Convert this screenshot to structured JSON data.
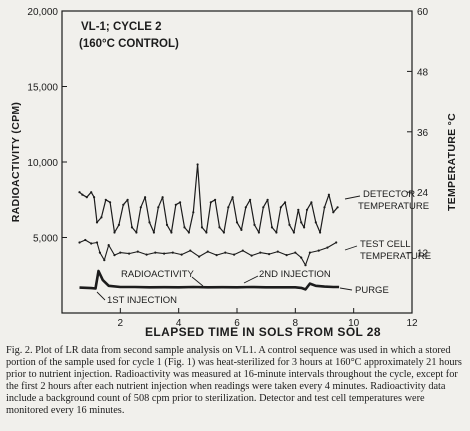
{
  "chart_data": {
    "type": "line",
    "title_lines": [
      "VL-1; CYCLE 2",
      "(160°C CONTROL)"
    ],
    "xlabel": "ELAPSED TIME IN SOLS FROM SOL 28",
    "ylabel": "RADIOACTIVITY (CPM)",
    "y2label": "TEMPERATURE °C",
    "xlim": [
      0,
      12
    ],
    "ylim": [
      0,
      20000
    ],
    "y2lim": [
      0,
      60
    ],
    "x_ticks": [
      2,
      4,
      6,
      8,
      10,
      12
    ],
    "y_ticks": [
      5000,
      10000,
      15000,
      20000
    ],
    "y_tick_labels": [
      "5,000",
      "10,000",
      "15,000",
      "20,000"
    ],
    "y2_ticks": [
      12,
      24,
      36,
      48,
      60
    ],
    "grid": false,
    "annotations": {
      "detector_temp": [
        "DETECTOR",
        "TEMPERATURE"
      ],
      "test_cell_temp": [
        "TEST CELL",
        "TEMPERATURE"
      ],
      "radioactivity": "RADIOACTIVITY",
      "injection_1": "1ST INJECTION",
      "injection_2": "2ND INJECTION",
      "purge": "PURGE"
    },
    "series": [
      {
        "name": "DETECTOR TEMPERATURE",
        "axis": "right",
        "x": [
          0.6,
          0.7,
          0.85,
          1.0,
          1.1,
          1.2,
          1.35,
          1.5,
          1.65,
          1.8,
          1.95,
          2.1,
          2.25,
          2.4,
          2.55,
          2.7,
          2.85,
          3.0,
          3.15,
          3.3,
          3.45,
          3.6,
          3.75,
          3.9,
          4.05,
          4.2,
          4.35,
          4.5,
          4.65,
          4.8,
          4.95,
          5.1,
          5.25,
          5.4,
          5.55,
          5.7,
          5.85,
          6.0,
          6.15,
          6.3,
          6.45,
          6.6,
          6.75,
          6.9,
          7.05,
          7.2,
          7.35,
          7.5,
          7.65,
          7.8,
          7.95,
          8.1,
          8.2,
          8.3,
          8.4,
          8.55,
          8.7,
          8.85,
          9.0,
          9.15,
          9.3,
          9.45
        ],
        "y": [
          24,
          23.5,
          23,
          24,
          23,
          18,
          19,
          22.5,
          22,
          16,
          17.5,
          21.5,
          22.5,
          17,
          16,
          21,
          23,
          18,
          16,
          21,
          23,
          17.5,
          16,
          21.5,
          22,
          17,
          16,
          20,
          29.5,
          17,
          16,
          22,
          22.5,
          17,
          16,
          21,
          23,
          18,
          16.5,
          21,
          22.5,
          17.5,
          16,
          21,
          22.5,
          17,
          16,
          21,
          22,
          17.5,
          16,
          20.5,
          18,
          17,
          20.5,
          22,
          18,
          16,
          21,
          23.5,
          20,
          21
        ]
      },
      {
        "name": "TEST CELL TEMPERATURE",
        "axis": "right",
        "x": [
          0.6,
          0.8,
          1.0,
          1.2,
          1.3,
          1.45,
          1.6,
          1.8,
          2.0,
          2.3,
          2.6,
          2.9,
          3.2,
          3.5,
          3.8,
          4.1,
          4.4,
          4.7,
          5.0,
          5.3,
          5.6,
          5.9,
          6.2,
          6.5,
          6.8,
          7.1,
          7.4,
          7.7,
          8.0,
          8.2,
          8.35,
          8.5,
          8.8,
          9.1,
          9.4
        ],
        "y": [
          14,
          14.5,
          13.8,
          14,
          12,
          10.5,
          13.5,
          11.5,
          12,
          11.8,
          12.2,
          11.6,
          12,
          11.8,
          12,
          11.6,
          12.4,
          11.2,
          12.2,
          11.5,
          12,
          11.6,
          12.4,
          11.4,
          12,
          11.7,
          12.2,
          11.5,
          12,
          11,
          9.5,
          12,
          12.4,
          13,
          14
        ]
      },
      {
        "name": "RADIOACTIVITY",
        "axis": "left",
        "x": [
          0.6,
          1.0,
          1.15,
          1.25,
          1.4,
          1.6,
          2.0,
          2.5,
          3.0,
          3.5,
          4.0,
          4.5,
          5.0,
          5.5,
          6.0,
          6.5,
          7.0,
          7.5,
          8.0,
          8.2,
          8.35,
          8.5,
          8.7,
          9.0,
          9.3,
          9.5
        ],
        "y": [
          1680,
          1650,
          1620,
          2780,
          2180,
          1800,
          1720,
          1720,
          1700,
          1710,
          1700,
          1720,
          1700,
          1710,
          1700,
          1720,
          1700,
          1700,
          1700,
          1660,
          1560,
          1950,
          1800,
          1750,
          1720,
          1720
        ]
      }
    ]
  },
  "caption": "Fig. 2. Plot of LR data from second sample analysis on VL1. A control sequence was used in which a stored portion of the sample used for cycle 1 (Fig. 1) was heat-sterilized for 3 hours at 160°C approximately 21 hours prior to nutrient injection. Radioactivity was measured at 16-minute intervals throughout the cycle, except for the first 2 hours after each nutrient injection when readings were taken every 4 minutes. Radioactivity data include a background count of 508 cpm prior to sterilization. Detector and test cell temperatures were monitored every 16 minutes."
}
